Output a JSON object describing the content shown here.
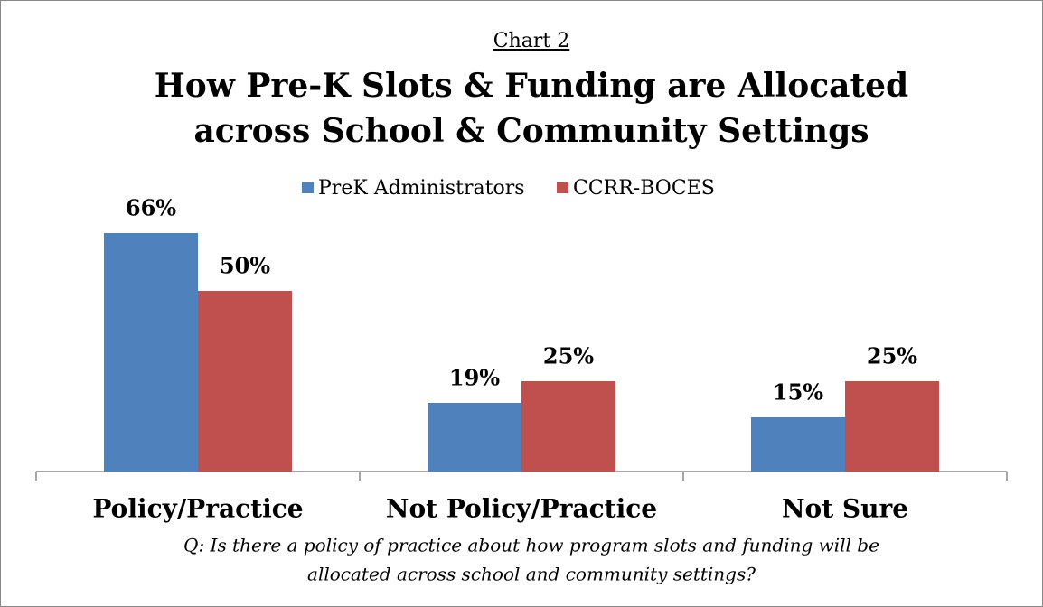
{
  "chart_data": {
    "type": "bar",
    "label": "Chart 2",
    "title": [
      "How Pre-K Slots & Funding are Allocated",
      "across School & Community Settings"
    ],
    "categories": [
      "Policy/Practice",
      "Not Policy/Practice",
      "Not Sure"
    ],
    "series": [
      {
        "name": "PreK Administrators",
        "color": "#4f81bd",
        "values": [
          66,
          19,
          15
        ],
        "value_labels": [
          "66%",
          "19%",
          "15%"
        ]
      },
      {
        "name": "CCRR-BOCES",
        "color": "#c0504d",
        "values": [
          50,
          25,
          25
        ],
        "value_labels": [
          "50%",
          "25%",
          "25%"
        ]
      }
    ],
    "ylim": [
      0,
      70
    ],
    "legend": "top",
    "annotations": [
      "Q: Is there a policy of practice about how program slots and funding will be",
      "allocated across school and community settings?"
    ]
  }
}
